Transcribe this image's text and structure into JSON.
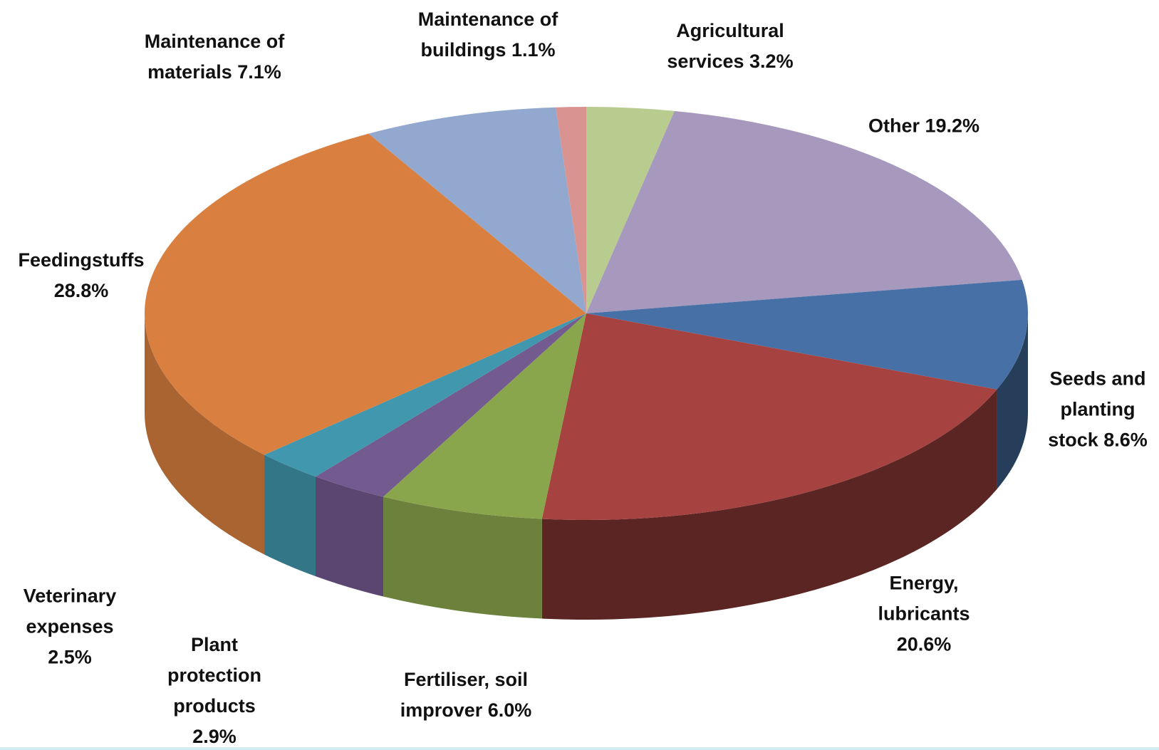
{
  "chart_data": {
    "type": "pie",
    "categories": [
      "Agricultural services",
      "Other",
      "Seeds and planting stock",
      "Energy, lubricants",
      "Fertiliser, soil improver",
      "Plant protection products",
      "Veterinary expenses",
      "Feedingstuffs",
      "Maintenance of materials",
      "Maintenance of buildings"
    ],
    "values": [
      3.2,
      19.2,
      8.6,
      20.6,
      6.0,
      2.9,
      2.5,
      28.8,
      7.1,
      1.1
    ],
    "value_labels": [
      "3.2%",
      "19.2%",
      "8.6%",
      "20.6%",
      "6.0%",
      "2.9%",
      "2.5%",
      "28.8%",
      "7.1%",
      "1.1%"
    ],
    "colors": [
      "#b8cc8f",
      "#a699bd",
      "#4670a6",
      "#a64341",
      "#8aa64c",
      "#735a8f",
      "#4197ae",
      "#d98040",
      "#93a8cf",
      "#d99391"
    ]
  }
}
